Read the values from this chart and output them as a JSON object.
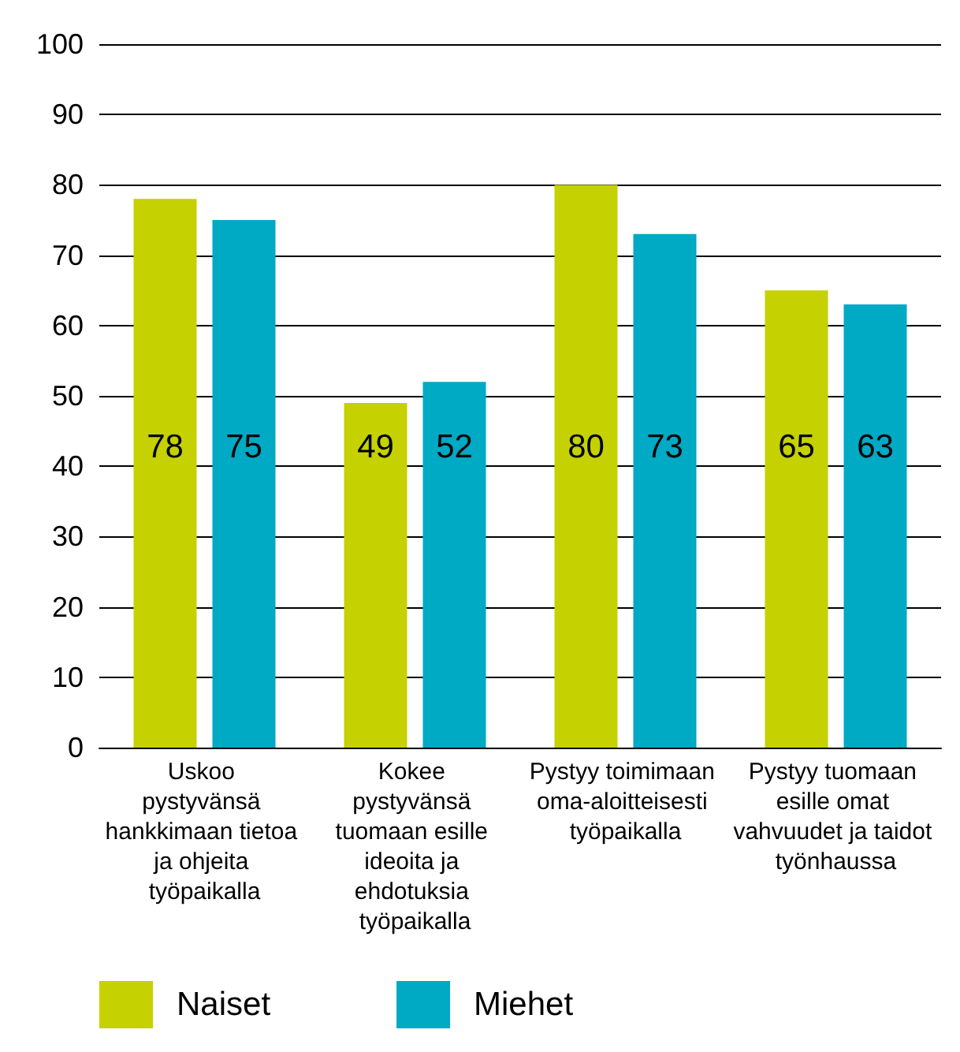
{
  "chart_data": {
    "type": "bar",
    "categories": [
      "Uskoo pystyvänsä hankkimaan tietoa ja ohjeita työpaikalla",
      "Kokee pystyvänsä tuomaan esille ideoita ja ehdotuksia työpaikalla",
      "Pystyy toimimaan oma-aloitteisesti työpaikalla",
      "Pystyy tuomaan esille omat vahvuudet ja taidot työnhaussa"
    ],
    "series": [
      {
        "name": "Naiset",
        "color": "#c5d100",
        "values": [
          78,
          49,
          80,
          65
        ]
      },
      {
        "name": "Miehet",
        "color": "#00a9c4",
        "values": [
          75,
          52,
          73,
          63
        ]
      }
    ],
    "ylim": [
      0,
      100
    ],
    "yticks": [
      0,
      10,
      20,
      30,
      40,
      50,
      60,
      70,
      80,
      90,
      100
    ],
    "grid": "y",
    "legend": "bottom left",
    "data_labels": true
  }
}
